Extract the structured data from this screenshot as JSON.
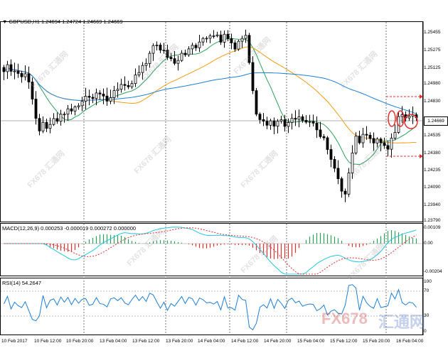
{
  "symbol_header": "GBPUSD,H1  1.24694 1.24724 1.24669 1.24669",
  "current_price": "1.24669",
  "price_ticks": [
    "1.25455",
    "1.25275",
    "1.25125",
    "1.24980",
    "1.24830",
    "1.24680",
    "1.24535",
    "1.24380",
    "1.24235",
    "1.24090",
    "1.23940",
    "1.23790"
  ],
  "macd": {
    "label": "MACD(12,26,9) 0.000253 -0.000019 0.000272 0.000000",
    "ticks": [
      "0.00109",
      "0.00",
      "-0.00204"
    ]
  },
  "rsi": {
    "label": "RSI(14) 54.2647",
    "ticks": [
      "100",
      "70",
      "30",
      "0"
    ]
  },
  "time_labels": [
    "10 Feb 2017",
    "10 Feb 12:00",
    "10 Feb 20:00",
    "13 Feb 04:00",
    "13 Feb 12:00",
    "13 Feb 20:00",
    "14 Feb 04:00",
    "14 Feb 12:00",
    "14 Feb 20:00",
    "15 Feb 04:00",
    "15 Feb 12:00",
    "15 Feb 20:00",
    "16 Feb 04:00"
  ],
  "watermark_text": "FX678 汇通网",
  "brand": {
    "latin": "FX678",
    "cjk": "汇通网"
  },
  "colors": {
    "bull_candle": "#ffffff",
    "bear_candle": "#000000",
    "ma_fast": "#2ca05a",
    "ma_mid": "#f39c12",
    "ma_slow": "#1e7fd6",
    "macd_pos": "#2ca05a",
    "macd_neg": "#e03030",
    "macd_signal": "#e03030",
    "macd_main": "#20c8e0",
    "rsi_line": "#1e7fd6",
    "annotation": "#e03030"
  }
}
